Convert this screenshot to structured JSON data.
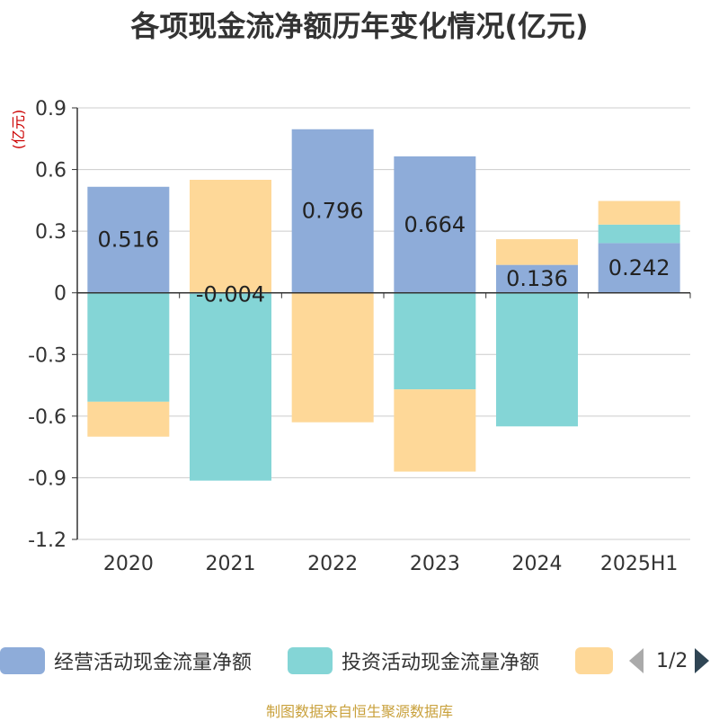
{
  "title": "各项现金流净额历年变化情况(亿元)",
  "source": "制图数据来自恒生聚源数据库",
  "legend": {
    "items": [
      {
        "label": "经营活动现金流量净额",
        "color": "#8eacd9"
      },
      {
        "label": "投资活动现金流量净额",
        "color": "#84d5d6"
      },
      {
        "label": "",
        "color": "#fed898"
      }
    ],
    "page": "1/2"
  },
  "chart_data": {
    "type": "bar",
    "stacked": true,
    "ylabel": "(亿元)",
    "ylim": [
      -1.2,
      0.9
    ],
    "yticks": [
      "0.9",
      "0.6",
      "0.3",
      "0",
      "-0.3",
      "-0.6",
      "-0.9",
      "-1.2"
    ],
    "ytick_values": [
      0.9,
      0.6,
      0.3,
      0,
      -0.3,
      -0.6,
      -0.9,
      -1.2
    ],
    "grid": true,
    "categories": [
      "2020",
      "2021",
      "2022",
      "2023",
      "2024",
      "2025H1"
    ],
    "series": [
      {
        "name": "经营活动现金流量净额",
        "color": "#8eacd9",
        "values": [
          0.516,
          -0.004,
          0.796,
          0.664,
          0.136,
          0.242
        ],
        "labels": [
          "0.516",
          "-0.004",
          "0.796",
          "0.664",
          "0.136",
          "0.242"
        ]
      },
      {
        "name": "投资活动现金流量净额",
        "color": "#84d5d6",
        "values": [
          -0.53,
          -0.91,
          0.0,
          -0.47,
          -0.65,
          0.09
        ]
      },
      {
        "name": "",
        "color": "#fed898",
        "values": [
          -0.17,
          0.55,
          -0.63,
          -0.4,
          0.125,
          0.115
        ]
      }
    ]
  }
}
